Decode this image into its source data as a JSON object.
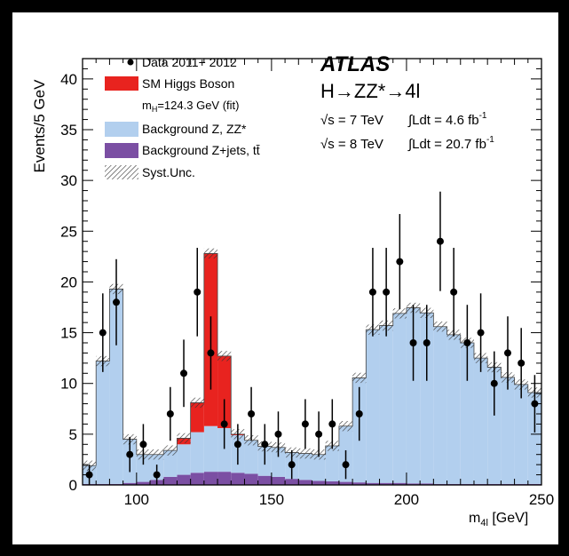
{
  "chart_data": {
    "type": "bar",
    "xlabel_main": "m",
    "xlabel_sub": "4l",
    "xlabel_unit": " [GeV]",
    "ylabel": "Events/5 GeV",
    "xlim": [
      80,
      250
    ],
    "ylim": [
      0,
      42
    ],
    "xticks": [
      100,
      150,
      200,
      250
    ],
    "yticks": [
      0,
      5,
      10,
      15,
      20,
      25,
      30,
      35,
      40
    ],
    "bin_width": 5,
    "bin_edges_start": [
      80,
      85,
      90,
      95,
      100,
      105,
      110,
      115,
      120,
      125,
      130,
      135,
      140,
      145,
      150,
      155,
      160,
      165,
      170,
      175,
      180,
      185,
      190,
      195,
      200,
      205,
      210,
      215,
      220,
      225,
      230,
      235,
      240,
      245
    ],
    "series": [
      {
        "name": "Background Z+jets, tt̄",
        "color": "#7b4fa3",
        "values": [
          0.1,
          0.1,
          0.1,
          0.2,
          0.3,
          0.5,
          0.8,
          1.0,
          1.2,
          1.3,
          1.3,
          1.2,
          1.1,
          0.9,
          0.8,
          0.6,
          0.5,
          0.4,
          0.35,
          0.3,
          0.25,
          0.2,
          0.2,
          0.2,
          0.15,
          0.15,
          0.1,
          0.1,
          0.1,
          0.1,
          0.1,
          0.1,
          0.1,
          0.1
        ]
      },
      {
        "name": "Background Z, ZZ*",
        "color": "#b2cfee",
        "values": [
          1.8,
          12.1,
          19.2,
          4.3,
          2.7,
          2.5,
          2.6,
          3.0,
          4.0,
          4.5,
          4.3,
          3.7,
          3.3,
          2.9,
          2.9,
          2.6,
          2.6,
          2.6,
          3.5,
          5.5,
          10.3,
          15.1,
          15.5,
          16.7,
          17.3,
          16.8,
          15.5,
          14.7,
          13.9,
          12.4,
          11.5,
          10.5,
          9.8,
          9.0
        ]
      },
      {
        "name": "SM Higgs Boson",
        "color": "#e8231f",
        "values": [
          0,
          0,
          0,
          0,
          0,
          0,
          0,
          0.6,
          2.9,
          17.0,
          7.1,
          0.1,
          0,
          0,
          0,
          0,
          0,
          0,
          0,
          0,
          0,
          0,
          0,
          0,
          0,
          0,
          0,
          0,
          0,
          0,
          0,
          0,
          0,
          0
        ]
      }
    ],
    "syst_unc_band": 0.5,
    "data_points": {
      "name": "Data 2011+ 2012",
      "x": [
        82.5,
        87.5,
        92.5,
        97.5,
        102.5,
        107.5,
        112.5,
        117.5,
        122.5,
        127.5,
        132.5,
        137.5,
        142.5,
        147.5,
        152.5,
        157.5,
        162.5,
        167.5,
        172.5,
        177.5,
        182.5,
        187.5,
        192.5,
        197.5,
        202.5,
        207.5,
        212.5,
        217.5,
        222.5,
        227.5,
        232.5,
        237.5,
        242.5,
        247.5
      ],
      "y": [
        1,
        15,
        18,
        3,
        4,
        1,
        7,
        11,
        19,
        13,
        6,
        4,
        7,
        4,
        5,
        2,
        6,
        5,
        6,
        2,
        7,
        19,
        19,
        22,
        14,
        14,
        24,
        19,
        14,
        15,
        10,
        13,
        12,
        8
      ]
    },
    "legend": {
      "placement": "top-left",
      "data_label": "Data 2011+ 2012",
      "higgs_label": "SM Higgs Boson",
      "higgs_mass_main": "m",
      "higgs_mass_sub": "H",
      "higgs_mass_rest": "=124.3 GeV (fit)",
      "zz_label": "Background Z, ZZ*",
      "zjets_label": "Background Z+jets, tt̄",
      "syst_label": "Syst.Unc."
    },
    "annotations": {
      "experiment": "ATLAS",
      "process": "H→ZZ*→4l",
      "lumi_7_energy": "√s = 7 TeV",
      "lumi_7_int": "∫Ldt = 4.6 fb",
      "lumi_8_energy": "√s = 8 TeV",
      "lumi_8_int": "∫Ldt = 20.7 fb",
      "lumi_exp": "-1"
    }
  }
}
